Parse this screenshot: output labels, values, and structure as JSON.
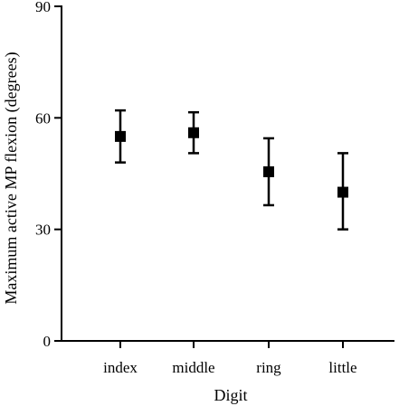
{
  "chart_data": {
    "type": "scatter",
    "title": "",
    "xlabel": "Digit",
    "ylabel": "Maximum active MP flexion (degrees)",
    "categories": [
      "index",
      "middle",
      "ring",
      "little"
    ],
    "ylim": [
      0,
      90
    ],
    "yticks": [
      0,
      30,
      60,
      90
    ],
    "grid": false,
    "legend": "none",
    "marker": "square",
    "color": "#000000",
    "series": [
      {
        "values": [
          55,
          56,
          45.5,
          40
        ],
        "error_low": [
          48,
          50.5,
          36.5,
          30
        ],
        "error_high": [
          62,
          61.5,
          54.5,
          50.5
        ]
      }
    ]
  }
}
